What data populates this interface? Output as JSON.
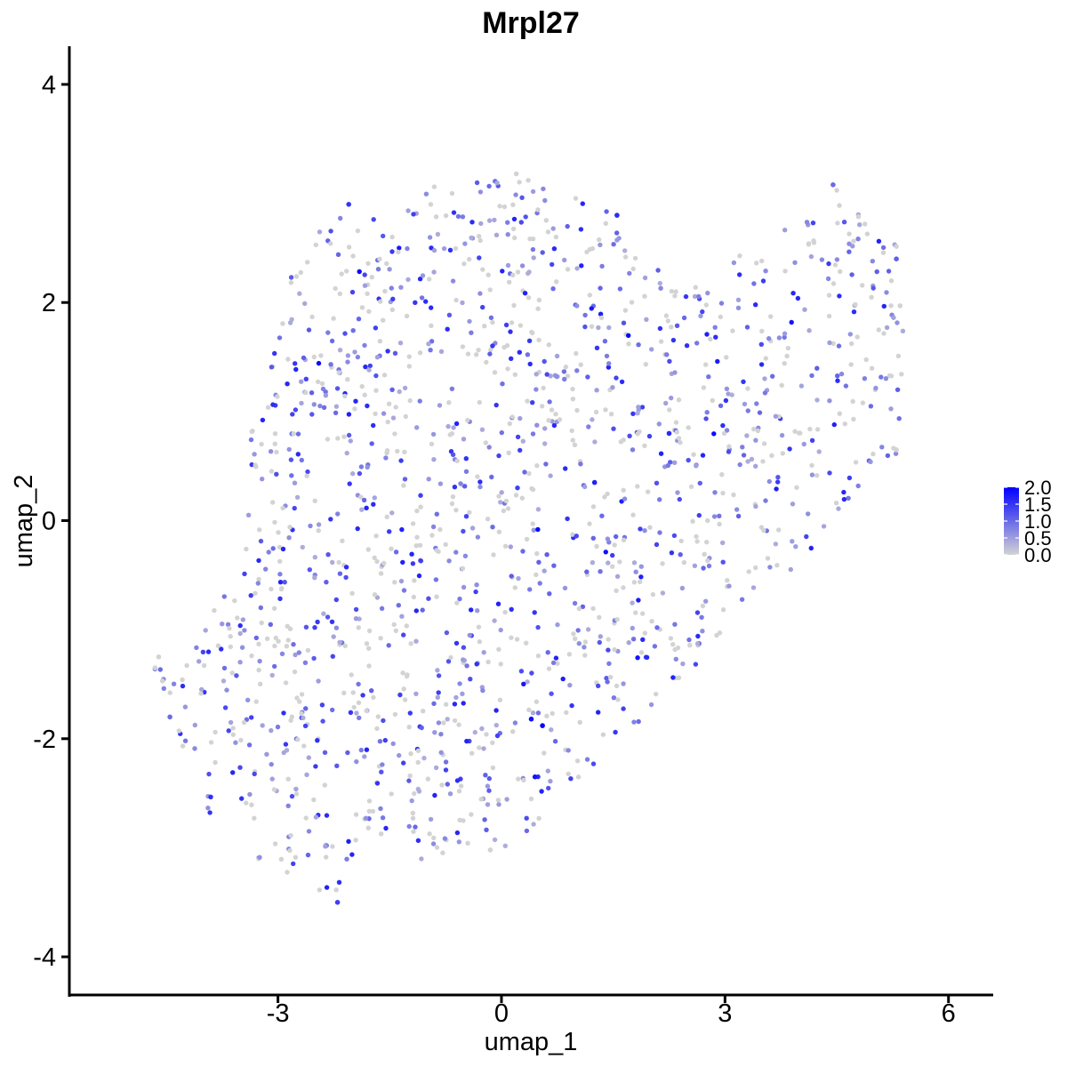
{
  "chart_data": {
    "type": "scatter",
    "title": "Mrpl27",
    "xlabel": "umap_1",
    "ylabel": "umap_2",
    "xlim": [
      -5.8,
      6.6
    ],
    "ylim": [
      -4.35,
      4.35
    ],
    "x_ticks": [
      -3,
      0,
      3,
      6
    ],
    "y_ticks": [
      -4,
      -2,
      0,
      2,
      4
    ],
    "x_tick_labels": [
      "-3",
      "0",
      "3",
      "6"
    ],
    "y_tick_labels": [
      "-4",
      "-2",
      "0",
      "2",
      "4"
    ],
    "grid": false,
    "legend": {
      "placement": "right",
      "type": "colorbar",
      "range": [
        0.0,
        2.0
      ],
      "tick_values": [
        2.0,
        1.5,
        1.0,
        0.5,
        0.0
      ],
      "tick_labels": [
        "2.0",
        "1.5",
        "1.0",
        "0.5",
        "0.0"
      ],
      "color_low": "#d3d3d3",
      "color_high": "#0000ff"
    },
    "point_cloud": {
      "description_count": 1600,
      "colored_fraction": 0.6,
      "outline": [
        [
          -4.7,
          -1.35
        ],
        [
          -4.15,
          -1.2
        ],
        [
          -3.6,
          -0.3
        ],
        [
          -3.4,
          0.7
        ],
        [
          -3.1,
          1.7
        ],
        [
          -2.8,
          2.4
        ],
        [
          -2.2,
          2.85
        ],
        [
          -1.2,
          3.05
        ],
        [
          0.2,
          3.15
        ],
        [
          1.3,
          2.95
        ],
        [
          1.8,
          2.55
        ],
        [
          2.4,
          2.1
        ],
        [
          3.4,
          2.55
        ],
        [
          4.2,
          2.8
        ],
        [
          4.5,
          3.05
        ],
        [
          5.3,
          2.6
        ],
        [
          5.45,
          1.8
        ],
        [
          5.3,
          0.6
        ],
        [
          4.9,
          0.2
        ],
        [
          4.3,
          -0.3
        ],
        [
          3.5,
          -0.6
        ],
        [
          3.1,
          -0.9
        ],
        [
          2.8,
          -1.3
        ],
        [
          2.1,
          -1.7
        ],
        [
          1.3,
          -2.2
        ],
        [
          0.6,
          -2.75
        ],
        [
          -0.1,
          -3.05
        ],
        [
          -1.2,
          -3.15
        ],
        [
          -1.7,
          -3.1
        ],
        [
          -2.05,
          -3.25
        ],
        [
          -2.2,
          -3.5
        ],
        [
          -2.8,
          -3.3
        ],
        [
          -3.5,
          -3.05
        ],
        [
          -4.05,
          -2.6
        ],
        [
          -4.3,
          -2.1
        ],
        [
          -4.45,
          -1.7
        ],
        [
          -4.7,
          -1.35
        ]
      ],
      "highlighted_points": [
        {
          "x": 0.55,
          "y": -1.88,
          "value": 2.0
        },
        {
          "x": 0.4,
          "y": -1.82,
          "value": 1.9
        },
        {
          "x": 0.45,
          "y": -2.35,
          "value": 1.8
        },
        {
          "x": 1.25,
          "y": 0.35,
          "value": 1.7
        },
        {
          "x": 2.25,
          "y": 0.8,
          "value": 1.6
        },
        {
          "x": 1.55,
          "y": 2.8,
          "value": 1.6
        },
        {
          "x": -2.05,
          "y": 2.9,
          "value": 1.5
        },
        {
          "x": -2.2,
          "y": -3.5,
          "value": 1.4
        },
        {
          "x": -4.6,
          "y": -1.25,
          "value": 0.0
        },
        {
          "x": -4.65,
          "y": -1.35,
          "value": 0.0
        },
        {
          "x": -4.55,
          "y": -1.47,
          "value": 0.0
        },
        {
          "x": -4.45,
          "y": -1.8,
          "value": 1.0
        },
        {
          "x": 4.45,
          "y": 3.08,
          "value": 1.0
        },
        {
          "x": 0.2,
          "y": 3.18,
          "value": 0.0
        },
        {
          "x": -0.15,
          "y": -3.02,
          "value": 0.0
        },
        {
          "x": 5.3,
          "y": 2.4,
          "value": 1.1
        },
        {
          "x": 5.35,
          "y": 1.97,
          "value": 0.0
        },
        {
          "x": 5.3,
          "y": 0.65,
          "value": 0.0
        }
      ]
    }
  }
}
